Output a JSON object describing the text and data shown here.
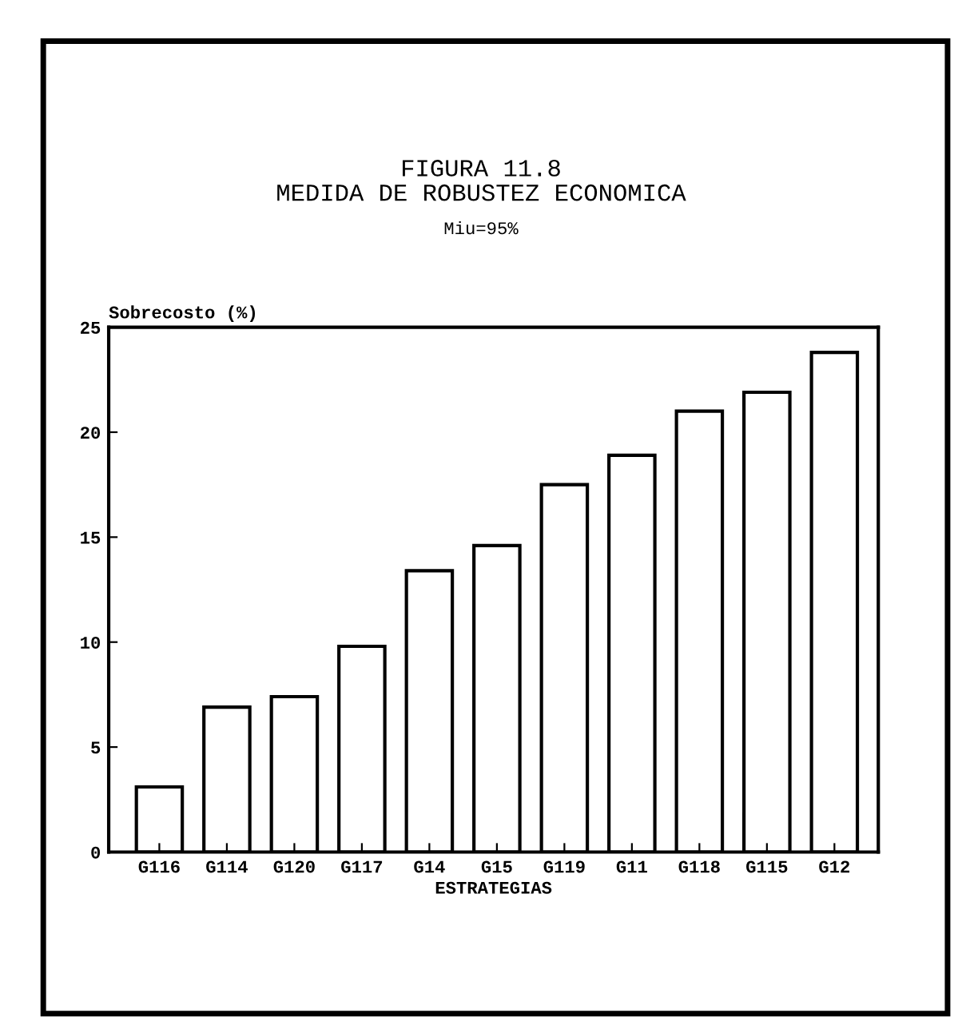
{
  "chart_data": {
    "type": "bar",
    "title": "FIGURA 11.8\nMEDIDA DE ROBUSTEZ ECONOMICA",
    "subtitle": "Miu=95%",
    "xlabel": "ESTRATEGIAS",
    "ylabel": "Sobrecosto (%)",
    "categories": [
      "G116",
      "G114",
      "G120",
      "G117",
      "G14",
      "G15",
      "G119",
      "G11",
      "G118",
      "G115",
      "G12"
    ],
    "values": [
      3.1,
      6.9,
      7.4,
      9.8,
      13.4,
      14.6,
      17.5,
      18.9,
      21.0,
      21.9,
      23.8
    ],
    "color": "#ffffff",
    "ylim": [
      0,
      25
    ],
    "yticks": [
      0,
      5,
      10,
      15,
      20,
      25
    ],
    "grid": false
  }
}
